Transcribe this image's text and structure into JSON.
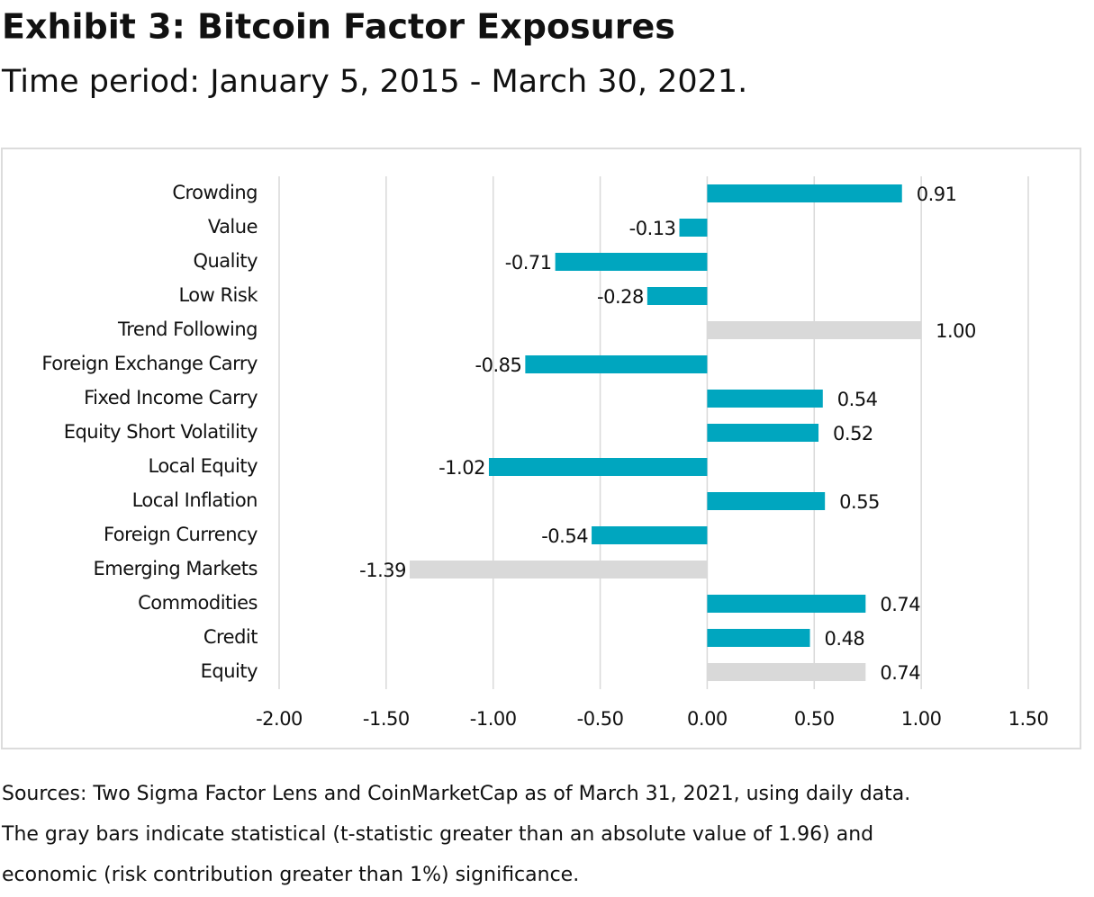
{
  "chart_data": {
    "type": "hbar",
    "title": "Exhibit 3: Bitcoin Factor Exposures",
    "subtitle": "Time period: January 5, 2015 - March 30, 2021.",
    "categories": [
      "Crowding",
      "Value",
      "Quality",
      "Low Risk",
      "Trend Following",
      "Foreign Exchange Carry",
      "Fixed Income Carry",
      "Equity Short Volatility",
      "Local Equity",
      "Local Inflation",
      "Foreign Currency",
      "Emerging Markets",
      "Commodities",
      "Credit",
      "Equity"
    ],
    "values": [
      0.91,
      -0.13,
      -0.71,
      -0.28,
      1,
      -0.85,
      0.54,
      0.52,
      -1.02,
      0.55,
      -0.54,
      -1.39,
      0.74,
      0.48,
      0.74
    ],
    "value_labels": [
      "0.91",
      "-0.13",
      "-0.71",
      "-0.28",
      "1.00",
      "-0.85",
      "0.54",
      "0.52",
      "-1.02",
      "0.55",
      "-0.54",
      "-1.39",
      "0.74",
      "0.48",
      "0.74"
    ],
    "colors": [
      "#00a6bf",
      "#00a6bf",
      "#00a6bf",
      "#00a6bf",
      "#d9d9d9",
      "#00a6bf",
      "#00a6bf",
      "#00a6bf",
      "#00a6bf",
      "#00a6bf",
      "#00a6bf",
      "#d9d9d9",
      "#00a6bf",
      "#00a6bf",
      "#d9d9d9"
    ],
    "xlim": [
      -2,
      1.5
    ],
    "xticks": [
      {
        "value": -2,
        "label": "-2.00"
      },
      {
        "value": -1.5,
        "label": "-1.50"
      },
      {
        "value": -1,
        "label": "-1.00"
      },
      {
        "value": -0.5,
        "label": "-0.50"
      },
      {
        "value": 0,
        "label": "0.00"
      },
      {
        "value": 0.5,
        "label": "0.50"
      },
      {
        "value": 1,
        "label": "1.00"
      },
      {
        "value": 1.5,
        "label": "1.50"
      }
    ],
    "grid": true,
    "notes": [
      "Sources: Two Sigma Factor Lens and CoinMarketCap as of March 31, 2021, using daily data.",
      "The gray bars indicate statistical (t-statistic greater than an absolute value of 1.96) and",
      "economic (risk contribution greater than 1%) significance."
    ]
  }
}
